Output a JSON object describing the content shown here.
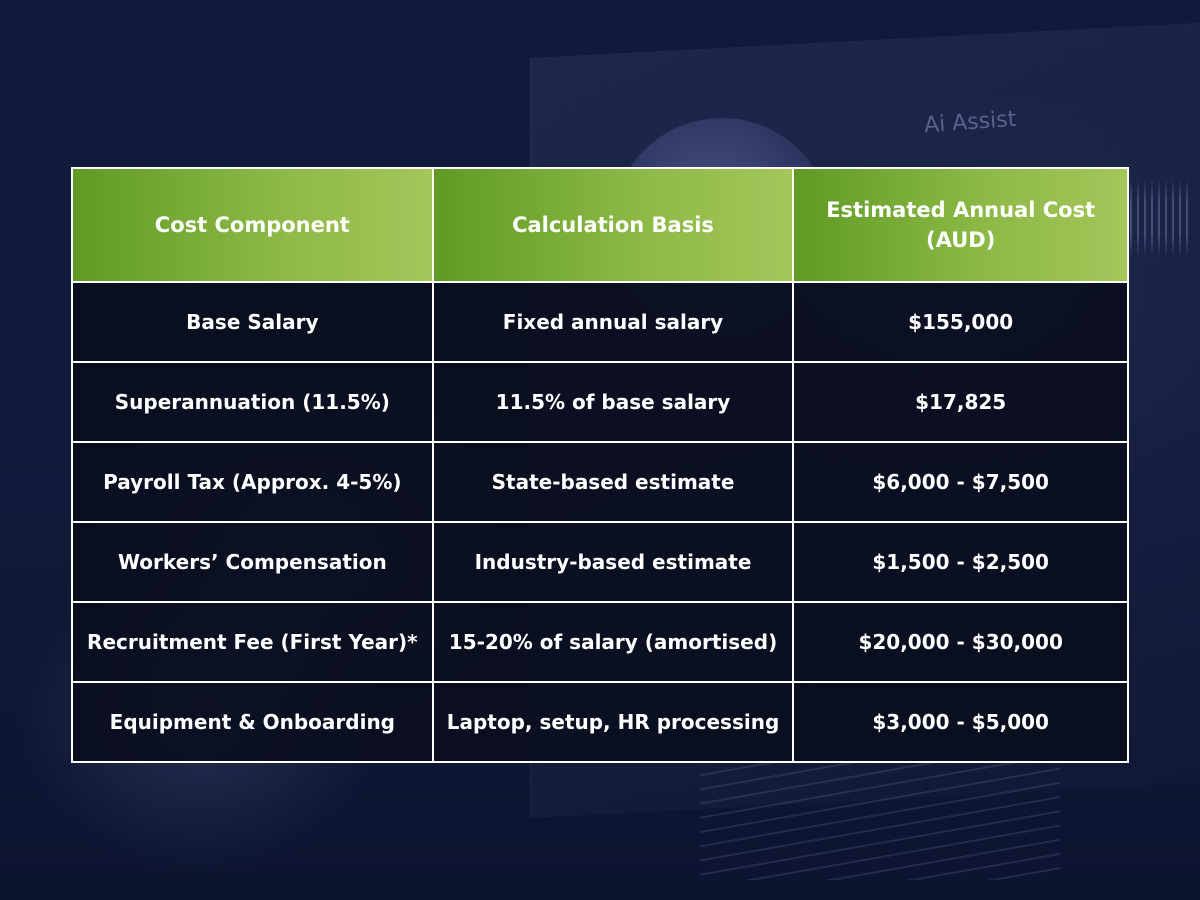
{
  "background": {
    "assist_text": "Ai Assist"
  },
  "table": {
    "headers": [
      "Cost Component",
      "Calculation Basis",
      "Estimated Annual Cost (AUD)"
    ],
    "rows": [
      [
        "Base Salary",
        "Fixed annual salary",
        "$155,000"
      ],
      [
        "Superannuation (11.5%)",
        "11.5% of base salary",
        "$17,825"
      ],
      [
        "Payroll Tax (Approx. 4-5%)",
        "State-based estimate",
        "$6,000 - $7,500"
      ],
      [
        "Workers’ Compensation",
        "Industry-based estimate",
        "$1,500 - $2,500"
      ],
      [
        "Recruitment Fee (First Year)*",
        "15-20% of salary (amortised)",
        "$20,000 - $30,000"
      ],
      [
        "Equipment & Onboarding",
        "Laptop, setup, HR processing",
        "$3,000 - $5,000"
      ]
    ]
  },
  "colors": {
    "header_green_start": "#5f9a24",
    "header_green_end": "#a4c65a",
    "cell_background": "#0a0e1e",
    "border": "#ffffff",
    "page_background": "#0f1733"
  }
}
